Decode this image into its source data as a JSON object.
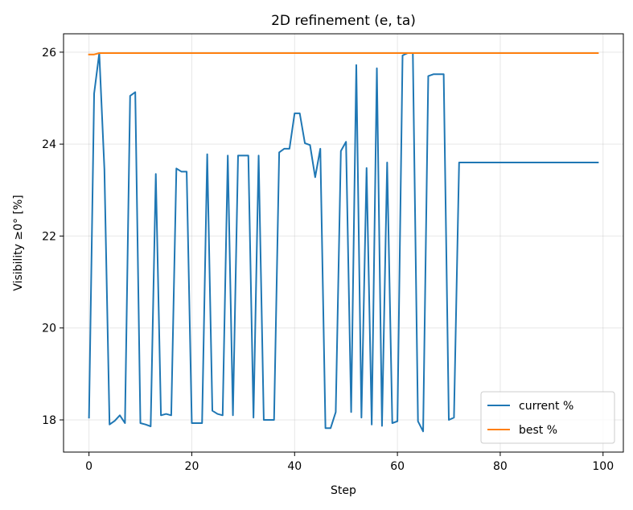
{
  "chart_data": {
    "type": "line",
    "title": "2D refinement (e, ta)",
    "xlabel": "Step",
    "ylabel": "Visibility ≥0° [%]",
    "xlim": [
      -4.95,
      103.95
    ],
    "ylim": [
      17.3,
      26.4
    ],
    "xticks": [
      0,
      20,
      40,
      60,
      80,
      100
    ],
    "yticks": [
      18,
      20,
      22,
      24,
      26
    ],
    "grid": true,
    "legend_position": "lower-right",
    "series": [
      {
        "name": "current %",
        "color": "#1f77b4",
        "x": [
          0,
          1,
          2,
          3,
          4,
          5,
          6,
          7,
          8,
          9,
          10,
          11,
          12,
          13,
          14,
          15,
          16,
          17,
          18,
          19,
          20,
          21,
          22,
          23,
          24,
          25,
          26,
          27,
          28,
          29,
          30,
          31,
          32,
          33,
          34,
          35,
          36,
          37,
          38,
          39,
          40,
          41,
          42,
          43,
          44,
          45,
          46,
          47,
          48,
          49,
          50,
          51,
          52,
          53,
          54,
          55,
          56,
          57,
          58,
          59,
          60,
          61,
          62,
          63,
          64,
          65,
          66,
          67,
          68,
          69,
          70,
          71,
          72,
          99
        ],
        "values": [
          18.05,
          25.1,
          25.98,
          23.45,
          17.9,
          17.98,
          18.1,
          17.93,
          25.05,
          25.13,
          17.93,
          17.9,
          17.86,
          23.35,
          18.1,
          18.13,
          18.1,
          23.47,
          23.4,
          23.4,
          17.93,
          17.93,
          17.93,
          23.78,
          18.2,
          18.13,
          18.1,
          23.75,
          18.1,
          23.75,
          23.75,
          23.75,
          18.05,
          23.75,
          18.0,
          18.0,
          18.0,
          23.82,
          23.9,
          23.9,
          24.67,
          24.67,
          24.02,
          23.98,
          23.28,
          23.9,
          17.82,
          17.82,
          18.17,
          23.85,
          24.05,
          18.17,
          25.72,
          18.05,
          23.48,
          17.9,
          25.65,
          17.87,
          23.6,
          17.93,
          17.97,
          25.93,
          25.98,
          25.98,
          17.97,
          17.75,
          25.48,
          25.52,
          25.52,
          25.52,
          18.0,
          18.05,
          23.6,
          23.6
        ]
      },
      {
        "name": "best %",
        "color": "#ff7f0e",
        "x": [
          0,
          1,
          2,
          99
        ],
        "values": [
          25.95,
          25.95,
          25.98,
          25.98
        ]
      }
    ]
  }
}
